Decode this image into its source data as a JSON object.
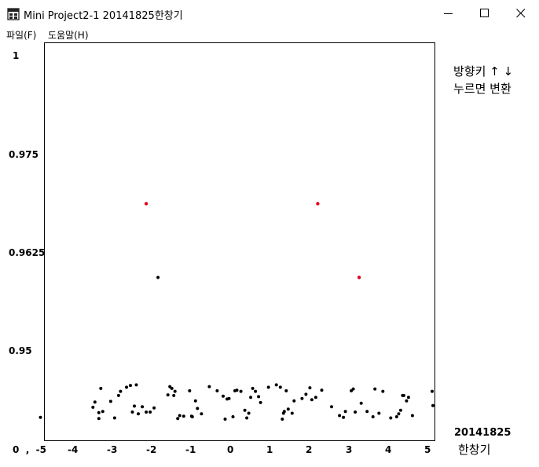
{
  "window": {
    "title": "Mini Project2-1 20141825한창기",
    "controls": {
      "minimize": "minimize-icon",
      "maximize": "maximize-icon",
      "close": "close-icon"
    }
  },
  "menu": {
    "items": [
      "파일(F)",
      "도움말(H)"
    ]
  },
  "hint": {
    "line1": "방향키 ↑ ↓",
    "line2": "누르면 변환"
  },
  "footer": {
    "student_id": "20141825",
    "name": "한창기"
  },
  "colors": {
    "point": "#000000",
    "highlight": "#e0001b"
  },
  "chart_data": {
    "type": "scatter",
    "title": "",
    "xlabel": "",
    "ylabel": "",
    "x_tick_labels": [
      "0  ,  -5",
      "-4",
      "-3",
      "-2",
      "-1",
      "0",
      "1",
      "2",
      "3",
      "4",
      "5"
    ],
    "y_tick_labels": [
      "1",
      "0.975",
      "0.9625",
      "0.95"
    ],
    "xlim": [
      -5,
      5.2
    ],
    "ylim": [
      0.9386,
      1.0
    ],
    "grid": false,
    "series": [
      {
        "color": "#000000",
        "points": [
          [
            -4.83,
            0.9388
          ],
          [
            -3.5,
            0.9405
          ],
          [
            -3.45,
            0.9414
          ],
          [
            -3.35,
            0.9386
          ],
          [
            -3.35,
            0.9396
          ],
          [
            -3.3,
            0.9437
          ],
          [
            -3.25,
            0.9398
          ],
          [
            -3.05,
            0.9415
          ],
          [
            -2.95,
            0.9387
          ],
          [
            -2.85,
            0.9425
          ],
          [
            -2.8,
            0.9432
          ],
          [
            -2.65,
            0.9439
          ],
          [
            -2.55,
            0.9442
          ],
          [
            -2.5,
            0.9397
          ],
          [
            -2.45,
            0.9407
          ],
          [
            -2.4,
            0.9443
          ],
          [
            -2.35,
            0.9394
          ],
          [
            -2.25,
            0.9406
          ],
          [
            -2.15,
            0.9397
          ],
          [
            -2.05,
            0.9397
          ],
          [
            -1.95,
            0.9404
          ],
          [
            -1.85,
            0.9625
          ],
          [
            -1.6,
            0.9426
          ],
          [
            -1.55,
            0.944
          ],
          [
            -1.5,
            0.9437
          ],
          [
            -1.45,
            0.9425
          ],
          [
            -1.42,
            0.9432
          ],
          [
            -1.35,
            0.9386
          ],
          [
            -1.3,
            0.9391
          ],
          [
            -1.2,
            0.939
          ],
          [
            -1.05,
            0.9433
          ],
          [
            -1.0,
            0.939
          ],
          [
            -0.98,
            0.9389
          ],
          [
            -0.9,
            0.9416
          ],
          [
            -0.85,
            0.9403
          ],
          [
            -0.75,
            0.9394
          ],
          [
            -0.55,
            0.944
          ],
          [
            -0.35,
            0.9433
          ],
          [
            -0.2,
            0.9424
          ],
          [
            -0.15,
            0.9385
          ],
          [
            -0.1,
            0.9419
          ],
          [
            -0.05,
            0.942
          ],
          [
            0.05,
            0.9389
          ],
          [
            0.1,
            0.9433
          ],
          [
            0.15,
            0.9434
          ],
          [
            0.25,
            0.9432
          ],
          [
            0.35,
            0.94
          ],
          [
            0.4,
            0.9387
          ],
          [
            0.45,
            0.9395
          ],
          [
            0.5,
            0.9422
          ],
          [
            0.55,
            0.9437
          ],
          [
            0.62,
            0.9432
          ],
          [
            0.7,
            0.9423
          ],
          [
            0.75,
            0.9413
          ],
          [
            0.95,
            0.9439
          ],
          [
            1.15,
            0.9443
          ],
          [
            1.25,
            0.9439
          ],
          [
            1.3,
            0.9385
          ],
          [
            1.33,
            0.9395
          ],
          [
            1.35,
            0.9398
          ],
          [
            1.4,
            0.9433
          ],
          [
            1.45,
            0.9402
          ],
          [
            1.55,
            0.9395
          ],
          [
            1.6,
            0.9416
          ],
          [
            1.8,
            0.942
          ],
          [
            1.9,
            0.9427
          ],
          [
            2.0,
            0.9438
          ],
          [
            2.05,
            0.9418
          ],
          [
            2.15,
            0.9422
          ],
          [
            2.3,
            0.9434
          ],
          [
            2.55,
            0.9406
          ],
          [
            2.75,
            0.9391
          ],
          [
            2.85,
            0.9388
          ],
          [
            2.9,
            0.9398
          ],
          [
            3.05,
            0.9433
          ],
          [
            3.1,
            0.9436
          ],
          [
            3.15,
            0.9397
          ],
          [
            3.3,
            0.9412
          ],
          [
            3.45,
            0.9398
          ],
          [
            3.6,
            0.9389
          ],
          [
            3.65,
            0.9436
          ],
          [
            3.75,
            0.9395
          ],
          [
            3.85,
            0.9432
          ],
          [
            4.05,
            0.9387
          ],
          [
            4.2,
            0.9389
          ],
          [
            4.25,
            0.9394
          ],
          [
            4.3,
            0.94
          ],
          [
            4.35,
            0.9425
          ],
          [
            4.38,
            0.9425
          ],
          [
            4.45,
            0.9416
          ],
          [
            4.5,
            0.9422
          ],
          [
            4.6,
            0.9391
          ],
          [
            5.1,
            0.9432
          ],
          [
            5.12,
            0.9408
          ]
        ]
      },
      {
        "color": "#e0001b",
        "points": [
          [
            -2.15,
            0.975
          ],
          [
            2.2,
            0.975
          ],
          [
            3.25,
            0.9625
          ]
        ]
      }
    ]
  }
}
